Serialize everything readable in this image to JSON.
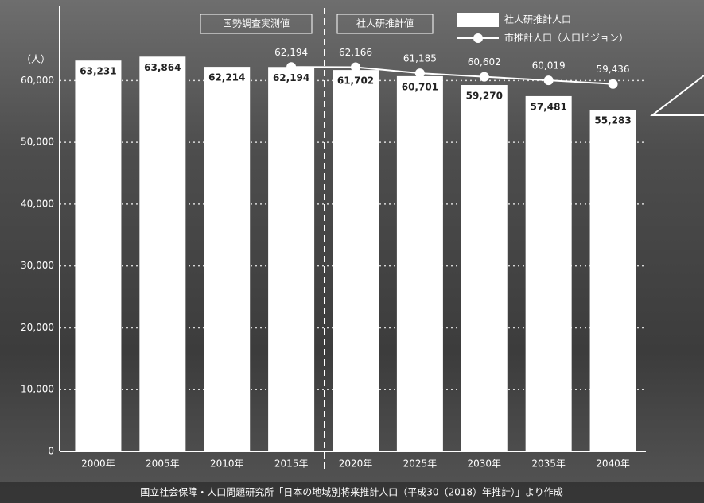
{
  "chart_data": {
    "type": "bar_line",
    "unit_label": "（人）",
    "period_labels": [
      "国勢調査実測値",
      "社人研推計値"
    ],
    "source": "国立社会保障・人口問題研究所「日本の地域別将来推計人口（平成30（2018）年推計）」より作成",
    "categories": [
      "2000年",
      "2005年",
      "2010年",
      "2015年",
      "2020年",
      "2025年",
      "2030年",
      "2035年",
      "2040年"
    ],
    "series": [
      {
        "name": "社人研推計人口",
        "type": "bar",
        "color": "#ffffff",
        "values": [
          63231,
          63864,
          62214,
          62194,
          61702,
          60701,
          59270,
          57481,
          55283
        ],
        "value_labels": [
          "63,231",
          "63,864",
          "62,214",
          "62,194",
          "61,702",
          "60,701",
          "59,270",
          "57,481",
          "55,283"
        ]
      },
      {
        "name": "市推計人口（人口ビジョン）",
        "type": "line",
        "color": "#ffffff",
        "values": [
          null,
          null,
          null,
          62194,
          62166,
          61185,
          60602,
          60019,
          59436
        ],
        "value_labels": [
          null,
          null,
          null,
          "62,194",
          "62,166",
          "61,185",
          "60,602",
          "60,019",
          "59,436"
        ]
      }
    ],
    "ylim": [
      0,
      72000
    ],
    "yticks": [
      0,
      {
        "value": 10000,
        "label": "10,000"
      },
      {
        "value": 20000,
        "label": "20,000"
      },
      {
        "value": 30000,
        "label": "30,000"
      },
      {
        "value": 40000,
        "label": "40,000"
      },
      {
        "value": 50000,
        "label": "50,000"
      },
      {
        "value": 60000,
        "label": "60,000"
      }
    ],
    "grid": true
  }
}
